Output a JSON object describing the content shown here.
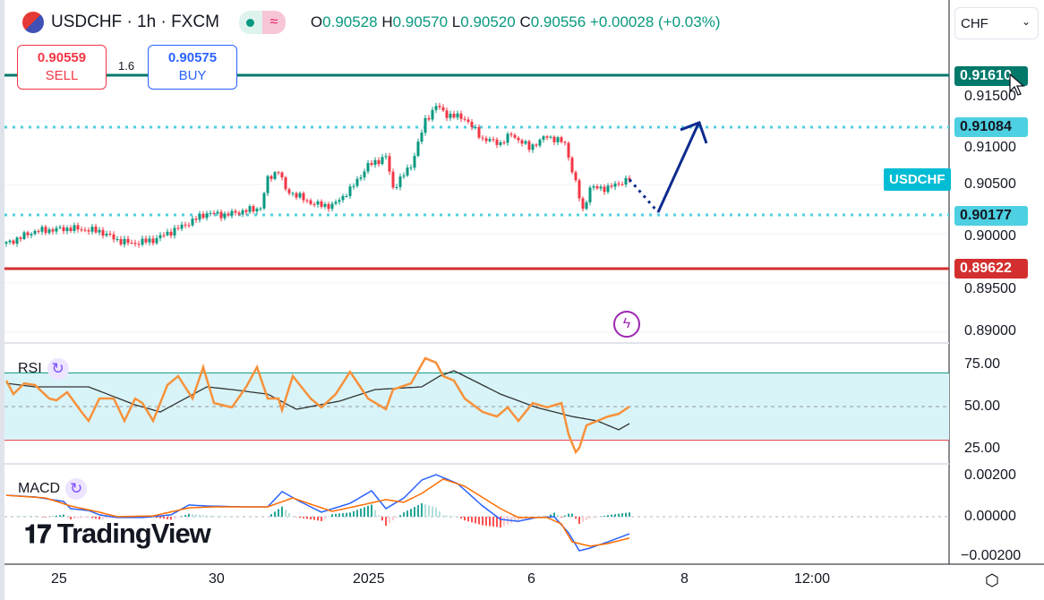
{
  "header": {
    "symbol": "USDCHF · 1h · FXCM",
    "open": "0.90528",
    "high": "0.90570",
    "low": "0.90520",
    "close": "0.90556",
    "change": "+0.00028 (+0.03%)",
    "o": "O",
    "h": "H",
    "l": "L",
    "c": "C",
    "status_icon": "dot-icon",
    "wave_icon": "≈"
  },
  "trade": {
    "sell_price": "0.90559",
    "sell_label": "SELL",
    "buy_price": "0.90575",
    "buy_label": "BUY",
    "spread": "1.6"
  },
  "currency": {
    "value": "CHF"
  },
  "price_axis": {
    "ticks": [
      "0.91500",
      "0.91000",
      "0.90500",
      "0.90000",
      "0.89500",
      "0.89000"
    ]
  },
  "levels": {
    "top": "0.91610",
    "upper": "0.91084",
    "lower": "0.90177",
    "bottom": "0.89622",
    "symbol_tag": "USDCHF"
  },
  "colors": {
    "top": "#00796b",
    "dotted": "#4dd0e1",
    "bottom": "#d32f2f",
    "up": "#089981",
    "down": "#f23645",
    "rsi": "#f7913b",
    "macd": "#2962ff",
    "signal": "#ff6d00"
  },
  "rsi": {
    "label": "RSI",
    "ticks": [
      "75.00",
      "50.00",
      "25.00"
    ]
  },
  "macd": {
    "label": "MACD",
    "ticks": [
      "0.00200",
      "0.00000",
      "−0.00200"
    ]
  },
  "x_axis": {
    "ticks": [
      "25",
      "30",
      "2025",
      "6",
      "8",
      "12:00"
    ]
  },
  "logo": "TradingView",
  "chart_data": {
    "type": "candlestick",
    "bars": 175,
    "price_path": [
      [
        0,
        0.899
      ],
      [
        8,
        0.90027
      ],
      [
        18,
        0.90055
      ],
      [
        26,
        0.90027
      ],
      [
        31,
        0.89936
      ],
      [
        35,
        0.899
      ],
      [
        41,
        0.89936
      ],
      [
        48,
        0.90055
      ],
      [
        56,
        0.90209
      ],
      [
        61,
        0.90191
      ],
      [
        71,
        0.90264
      ],
      [
        73,
        0.90555
      ],
      [
        76,
        0.90645
      ],
      [
        78,
        0.90445
      ],
      [
        86,
        0.903
      ],
      [
        91,
        0.90282
      ],
      [
        96,
        0.90445
      ],
      [
        101,
        0.90691
      ],
      [
        106,
        0.90782
      ],
      [
        108,
        0.90464
      ],
      [
        113,
        0.90691
      ],
      [
        117,
        0.91145
      ],
      [
        120,
        0.913
      ],
      [
        123,
        0.91209
      ],
      [
        128,
        0.91173
      ],
      [
        133,
        0.90964
      ],
      [
        138,
        0.90918
      ],
      [
        141,
        0.91009
      ],
      [
        146,
        0.90873
      ],
      [
        151,
        0.90991
      ],
      [
        156,
        0.90918
      ],
      [
        158,
        0.90645
      ],
      [
        161,
        0.90236
      ],
      [
        163,
        0.90464
      ],
      [
        168,
        0.90464
      ],
      [
        174,
        0.90556
      ]
    ],
    "projection": [
      [
        0.90177
      ],
      [
        0.91084
      ]
    ],
    "rsi": [
      [
        0,
        65.4
      ],
      [
        2,
        57.4
      ],
      [
        5,
        63.8
      ],
      [
        8,
        62.8
      ],
      [
        12,
        54.8
      ],
      [
        14,
        53.7
      ],
      [
        17,
        58.5
      ],
      [
        21,
        46.8
      ],
      [
        23,
        41.5
      ],
      [
        26,
        54.8
      ],
      [
        30,
        54.8
      ],
      [
        33,
        41.5
      ],
      [
        36,
        54.8
      ],
      [
        38,
        52.1
      ],
      [
        41,
        41.5
      ],
      [
        45,
        62.8
      ],
      [
        48,
        68.1
      ],
      [
        52,
        54.8
      ],
      [
        55,
        73.4
      ],
      [
        58,
        52.1
      ],
      [
        63,
        49.5
      ],
      [
        67,
        61.7
      ],
      [
        70,
        73.4
      ],
      [
        73,
        54.8
      ],
      [
        76,
        54.8
      ],
      [
        77,
        47.9
      ],
      [
        80,
        68.1
      ],
      [
        85,
        54.8
      ],
      [
        88,
        49.5
      ],
      [
        92,
        57.4
      ],
      [
        96,
        70.7
      ],
      [
        101,
        54.8
      ],
      [
        106,
        48.4
      ],
      [
        108,
        60.1
      ],
      [
        113,
        63.8
      ],
      [
        117,
        78.7
      ],
      [
        120,
        76.1
      ],
      [
        122,
        68.1
      ],
      [
        125,
        65.4
      ],
      [
        128,
        54.8
      ],
      [
        133,
        46.8
      ],
      [
        137,
        44.1
      ],
      [
        140,
        49.5
      ],
      [
        143,
        41.5
      ],
      [
        147,
        52.1
      ],
      [
        151,
        49.5
      ],
      [
        155,
        52.1
      ],
      [
        157,
        33.5
      ],
      [
        159,
        22.9
      ],
      [
        160,
        25.5
      ],
      [
        162,
        38.8
      ],
      [
        165,
        41.5
      ],
      [
        168,
        44.1
      ],
      [
        171,
        45.7
      ],
      [
        174,
        50
      ]
    ],
    "rsi_ma": [
      [
        0,
        63.8
      ],
      [
        8,
        61.7
      ],
      [
        23,
        61.7
      ],
      [
        36,
        51
      ],
      [
        43,
        46.8
      ],
      [
        56,
        61.7
      ],
      [
        63,
        60.1
      ],
      [
        73,
        57.4
      ],
      [
        81,
        48.4
      ],
      [
        93,
        53.2
      ],
      [
        103,
        60.1
      ],
      [
        116,
        61.7
      ],
      [
        121,
        68.1
      ],
      [
        125,
        71.3
      ],
      [
        128,
        68.1
      ],
      [
        138,
        57.4
      ],
      [
        148,
        49.5
      ],
      [
        158,
        44.1
      ],
      [
        165,
        41.5
      ],
      [
        171,
        36.2
      ],
      [
        174,
        39.9
      ]
    ],
    "macd": [
      [
        0,
        0.00104
      ],
      [
        8,
        0.00096
      ],
      [
        16,
        0.00074
      ],
      [
        18,
        0.00039
      ],
      [
        23,
        0.0003
      ],
      [
        26,
        9e-05
      ],
      [
        31,
        -4e-05
      ],
      [
        38,
        -4e-05
      ],
      [
        46,
        9e-05
      ],
      [
        51,
        0.00057
      ],
      [
        56,
        0.00052
      ],
      [
        66,
        0.00048
      ],
      [
        73,
        0.00048
      ],
      [
        77,
        0.00122
      ],
      [
        82,
        0.00074
      ],
      [
        88,
        0.00022
      ],
      [
        96,
        0.00065
      ],
      [
        102,
        0.00126
      ],
      [
        106,
        0.00039
      ],
      [
        111,
        0.00091
      ],
      [
        116,
        0.00178
      ],
      [
        120,
        0.00204
      ],
      [
        126,
        0.00161
      ],
      [
        133,
        0.00052
      ],
      [
        138,
        -0.00013
      ],
      [
        143,
        -0.00022
      ],
      [
        148,
        -4e-05
      ],
      [
        153,
        0
      ],
      [
        157,
        -0.00078
      ],
      [
        160,
        -0.00165
      ],
      [
        163,
        -0.00152
      ],
      [
        168,
        -0.00122
      ],
      [
        174,
        -0.00083
      ]
    ],
    "signal": [
      [
        0,
        0.00104
      ],
      [
        11,
        0.00091
      ],
      [
        18,
        0.00052
      ],
      [
        26,
        0.00022
      ],
      [
        31,
        0
      ],
      [
        41,
        4e-05
      ],
      [
        51,
        0.00043
      ],
      [
        58,
        0.00048
      ],
      [
        68,
        0.00048
      ],
      [
        73,
        0.00048
      ],
      [
        80,
        0.00091
      ],
      [
        85,
        0.00061
      ],
      [
        91,
        0.00026
      ],
      [
        98,
        0.00052
      ],
      [
        106,
        0.00083
      ],
      [
        111,
        0.0007
      ],
      [
        116,
        0.00113
      ],
      [
        122,
        0.00183
      ],
      [
        128,
        0.00148
      ],
      [
        138,
        0.00039
      ],
      [
        143,
        -4e-05
      ],
      [
        151,
        -4e-05
      ],
      [
        155,
        -0.00035
      ],
      [
        158,
        -0.00122
      ],
      [
        163,
        -0.00143
      ],
      [
        168,
        -0.0013
      ],
      [
        174,
        -0.00104
      ]
    ]
  }
}
